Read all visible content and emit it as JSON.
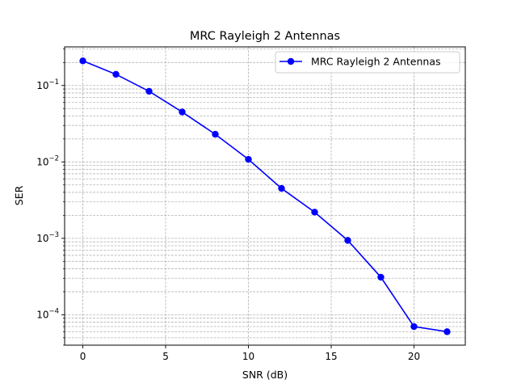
{
  "chart_data": {
    "type": "line",
    "title": "MRC Rayleigh 2 Antennas",
    "xlabel": "SNR (dB)",
    "ylabel": "SER",
    "x": [
      0,
      2,
      4,
      6,
      8,
      10,
      12,
      14,
      16,
      18,
      20,
      22
    ],
    "series": [
      {
        "name": "MRC Rayleigh 2 Antennas",
        "color": "#0000ff",
        "marker": "circle",
        "values": [
          0.21,
          0.14,
          0.084,
          0.045,
          0.023,
          0.0108,
          0.0045,
          0.0022,
          0.00094,
          0.00031,
          7e-05,
          6e-05
        ]
      }
    ],
    "xlim": [
      -1.1,
      23.1
    ],
    "ylim": [
      4e-05,
      0.32
    ],
    "yscale": "log",
    "xticks": [
      "0",
      "5",
      "10",
      "15",
      "20"
    ],
    "xtick_values": [
      0,
      5,
      10,
      15,
      20
    ],
    "yticks": [
      "10",
      "10",
      "10",
      "10"
    ],
    "ytick_exponents": [
      "−1",
      "−2",
      "−3",
      "−4"
    ],
    "ytick_values": [
      0.1,
      0.01,
      0.001,
      0.0001
    ],
    "grid": true,
    "grid_style": "dashed",
    "legend_position": "top-right"
  }
}
